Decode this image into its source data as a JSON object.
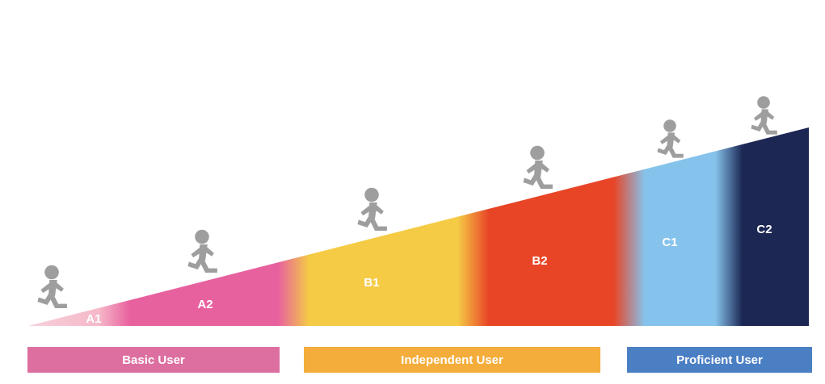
{
  "levels": [
    {
      "code": "A1",
      "color": "#f6b9c9"
    },
    {
      "code": "A2",
      "color": "#e8619f"
    },
    {
      "code": "B1",
      "color": "#f5cb45"
    },
    {
      "code": "B2",
      "color": "#e84527"
    },
    {
      "code": "C1",
      "color": "#86c3ec"
    },
    {
      "code": "C2",
      "color": "#1c2754"
    }
  ],
  "bands": [
    {
      "label": "Basic User",
      "color": "#dd6ea0"
    },
    {
      "label": "Independent User",
      "color": "#f4ad3a"
    },
    {
      "label": "Proficient User",
      "color": "#4b7fc4"
    }
  ],
  "runner_icon": "running-person-icon",
  "runner_color": "#9e9e9e"
}
